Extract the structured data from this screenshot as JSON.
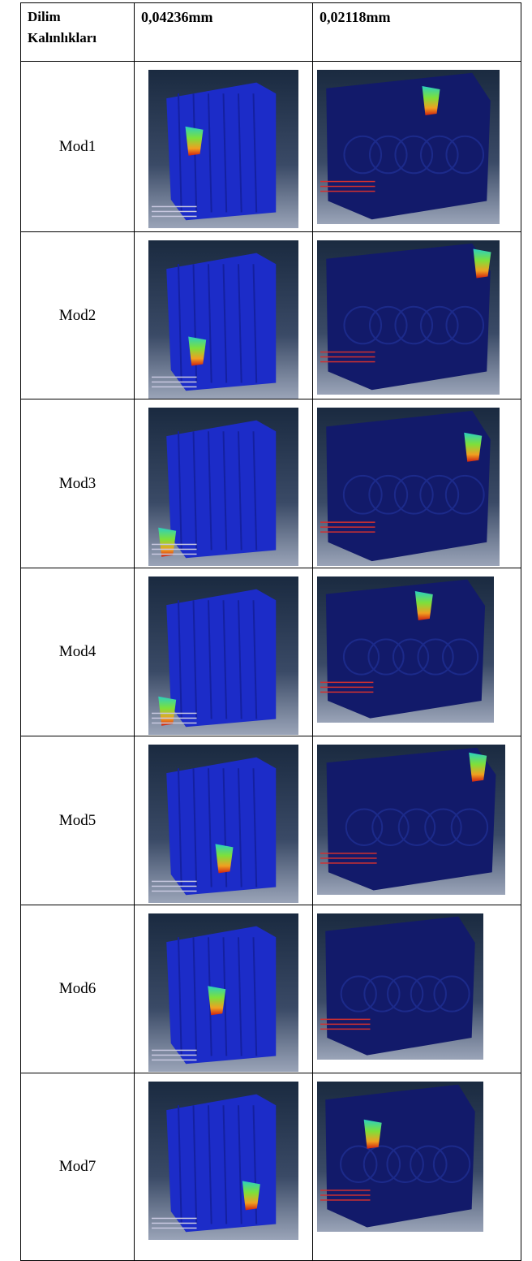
{
  "table": {
    "header": [
      "Dilim Kalınlıkları",
      "0,04236mm",
      "0,02118mm"
    ],
    "rows": [
      "Mod1",
      "Mod2",
      "Mod3",
      "Mod4",
      "Mod5",
      "Mod6",
      "Mod7"
    ]
  }
}
